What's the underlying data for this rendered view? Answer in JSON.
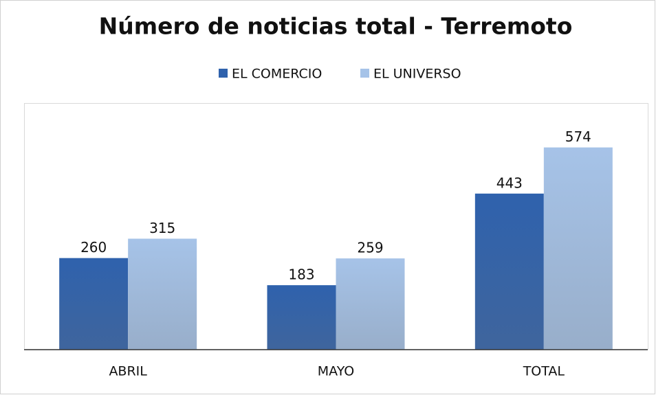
{
  "chart_data": {
    "type": "bar",
    "title": "Número de noticias total - Terremoto",
    "categories": [
      "ABRIL",
      "MAYO",
      "TOTAL"
    ],
    "series": [
      {
        "name": "EL COMERCIO",
        "color": "#2f62ad",
        "values": [
          260,
          183,
          443
        ]
      },
      {
        "name": "EL UNIVERSO",
        "color": "#a6c3e8",
        "values": [
          315,
          259,
          574
        ]
      }
    ],
    "ylim": [
      0,
      700
    ],
    "legend": "top"
  }
}
